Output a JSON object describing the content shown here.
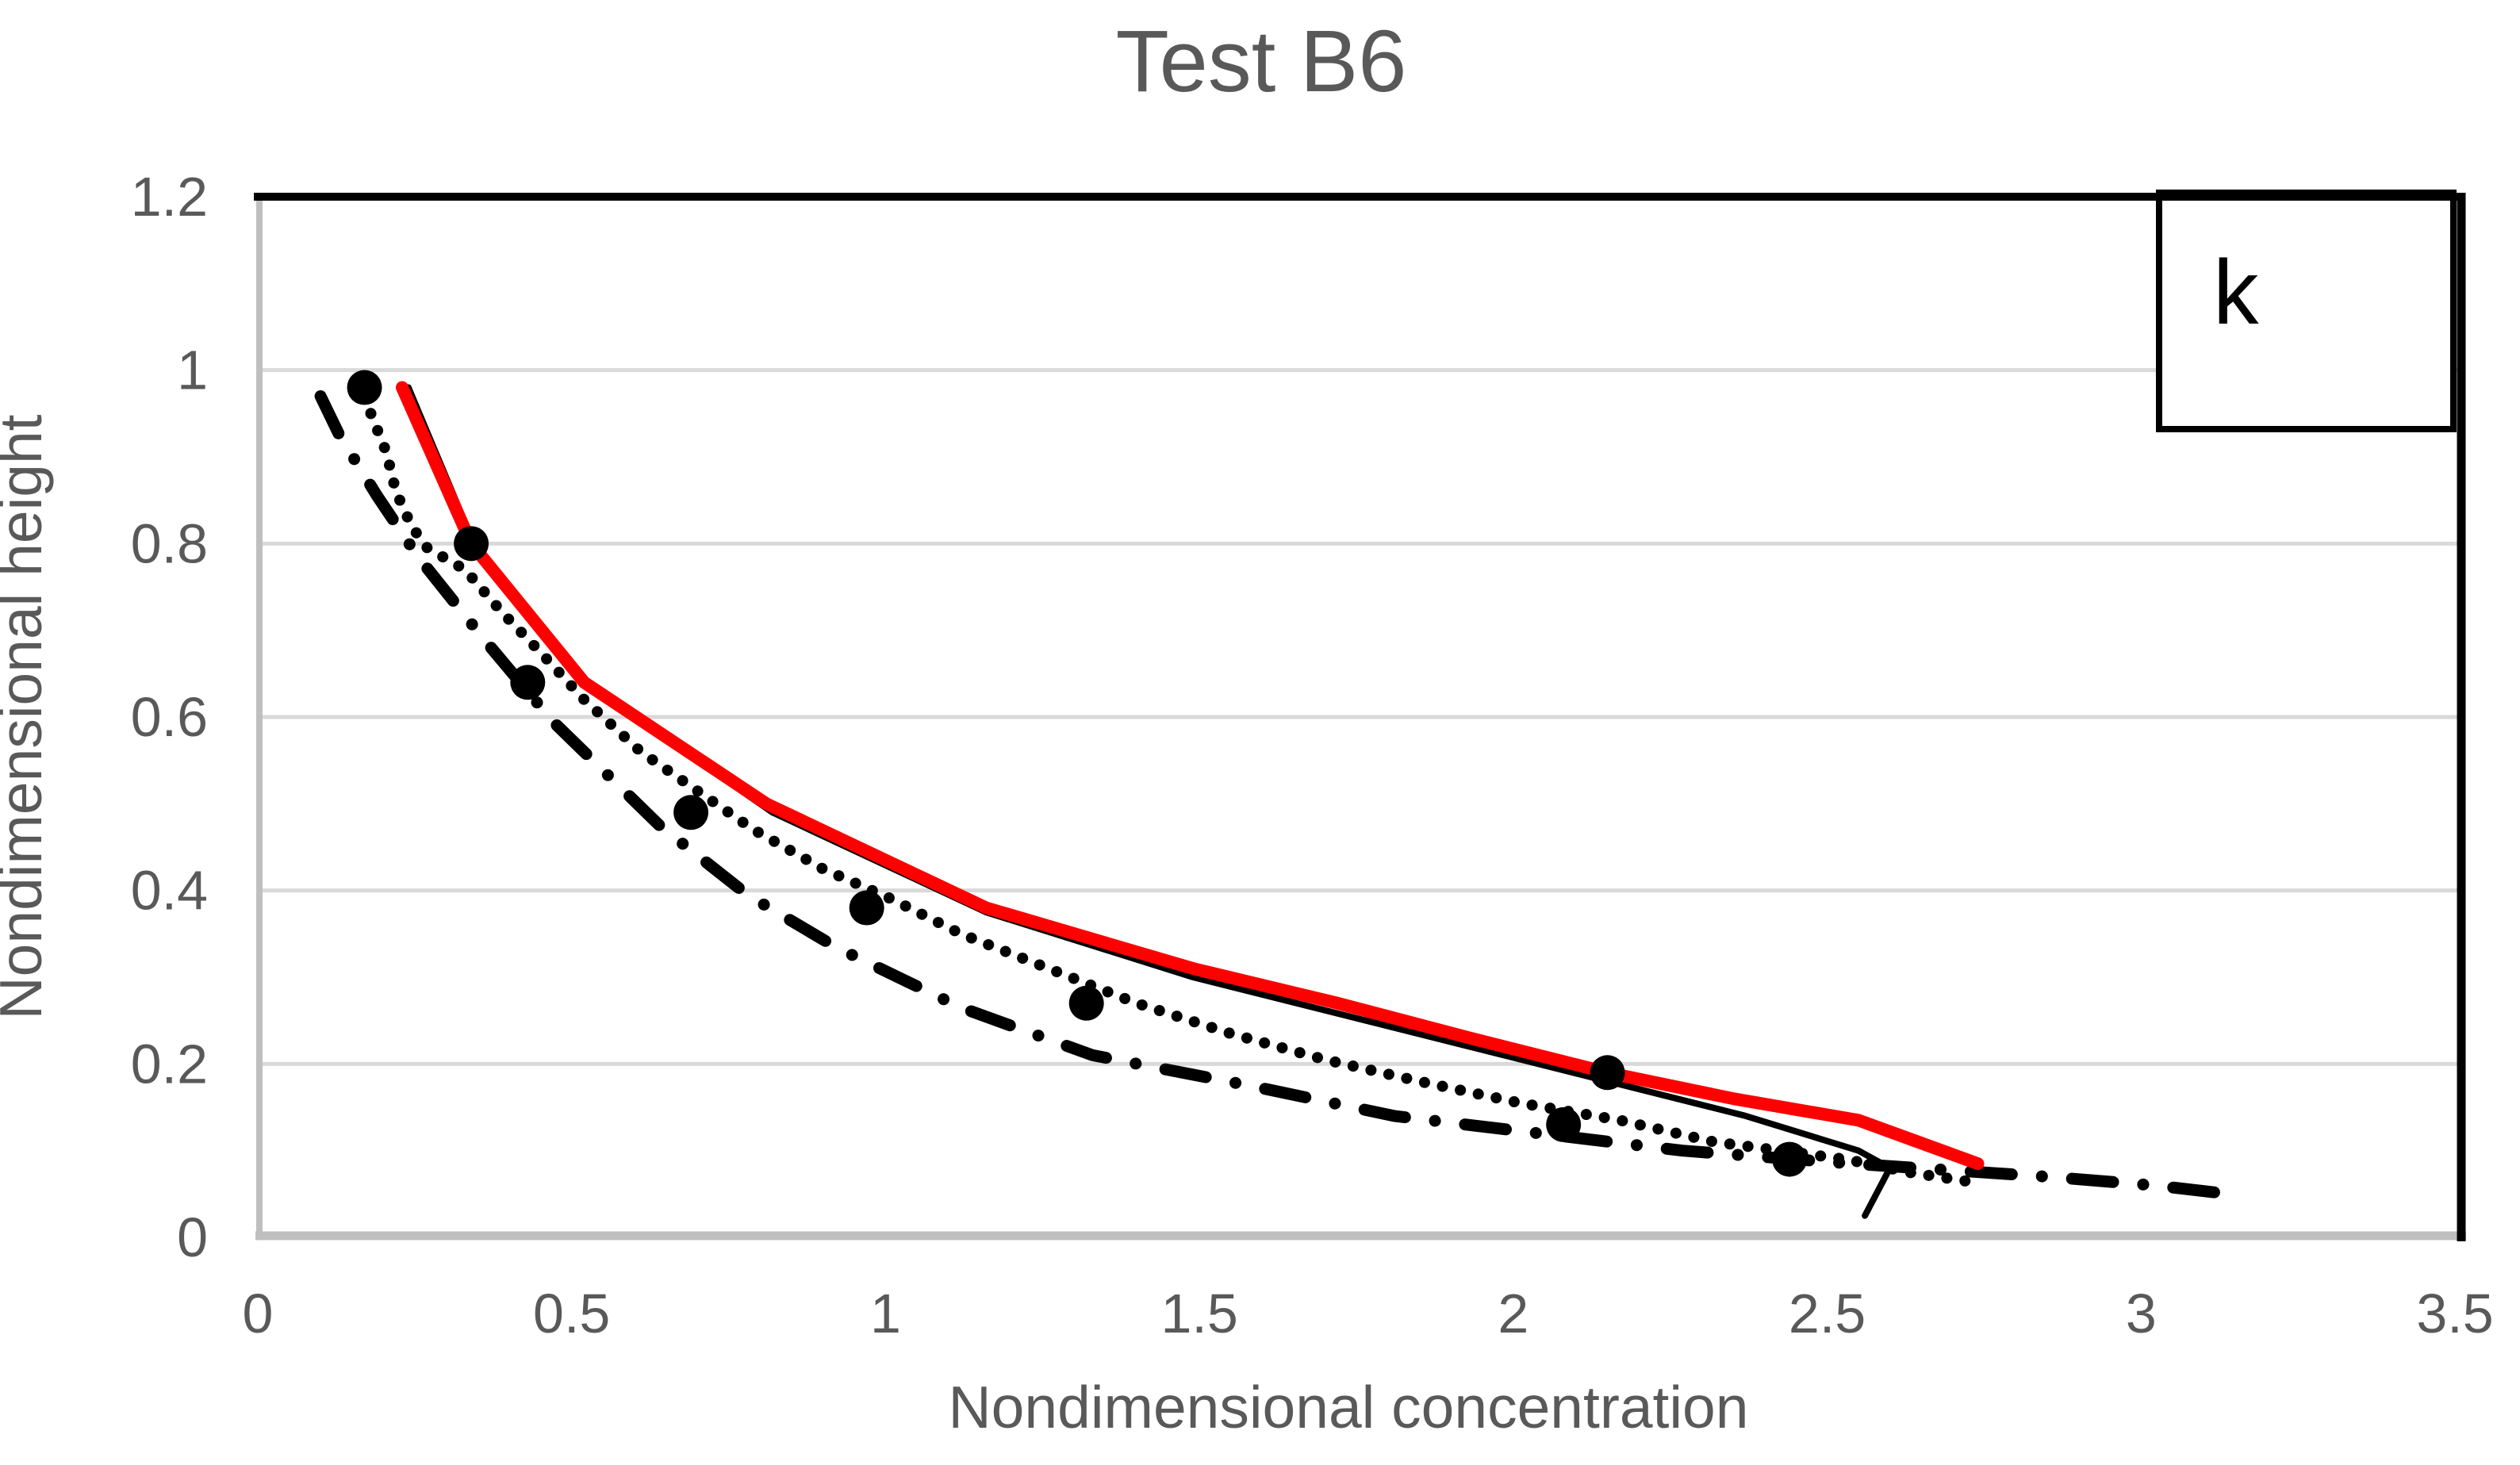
{
  "title": "Test B6",
  "colors": {
    "red_series": "#FF0000",
    "black_series": "#000000",
    "gridline": "#D9D9D9",
    "axis_line": "#BFBFBF",
    "border_line": "#000000",
    "text": "#595959",
    "background": "#FFFFFF"
  },
  "chart_data": {
    "type": "line",
    "title": "Test B6",
    "xlabel": "Nondimensional concentration",
    "ylabel": "Nondimensional height",
    "xlim": [
      0,
      3.5
    ],
    "ylim": [
      0,
      1.2
    ],
    "grid": "horizontal",
    "x_ticks": [
      0,
      0.5,
      1,
      1.5,
      2,
      2.5,
      3,
      3.5
    ],
    "x_tick_labels": [
      "0",
      "0.5",
      "1",
      "1.5",
      "2",
      "2.5",
      "3",
      "3.5"
    ],
    "y_ticks": [
      0,
      0.2,
      0.4,
      0.6,
      0.8,
      1,
      1.2
    ],
    "y_tick_labels": [
      "0",
      "0.2",
      "0.4",
      "0.6",
      "0.8",
      "1",
      "1.2"
    ],
    "y_gridline_values": [
      0.2,
      0.4,
      0.6,
      0.8,
      1.0
    ],
    "legend": {
      "position": "top-right",
      "label": "k"
    },
    "series": [
      {
        "name": "dash-dot-model",
        "type": "line",
        "style": "dash-dot",
        "color": "#000000",
        "width": 15,
        "points": [
          [
            0.1,
            0.97
          ],
          [
            0.13,
            0.925
          ],
          [
            0.19,
            0.855
          ],
          [
            0.255,
            0.785
          ],
          [
            0.36,
            0.69
          ],
          [
            0.47,
            0.595
          ],
          [
            0.555,
            0.535
          ],
          [
            0.64,
            0.475
          ],
          [
            0.78,
            0.395
          ],
          [
            0.92,
            0.335
          ],
          [
            1.12,
            0.265
          ],
          [
            1.33,
            0.21
          ],
          [
            1.58,
            0.175
          ],
          [
            1.81,
            0.14
          ],
          [
            2.04,
            0.12
          ],
          [
            2.27,
            0.1
          ],
          [
            2.54,
            0.085
          ],
          [
            2.85,
            0.07
          ],
          [
            3.02,
            0.06
          ],
          [
            3.14,
            0.05
          ]
        ]
      },
      {
        "name": "dotted-model",
        "type": "line",
        "style": "dotted",
        "color": "#000000",
        "width": 14,
        "points": [
          [
            0.18,
            0.95
          ],
          [
            0.205,
            0.905
          ],
          [
            0.22,
            0.86
          ],
          [
            0.245,
            0.82
          ],
          [
            0.27,
            0.795
          ],
          [
            0.33,
            0.77
          ],
          [
            0.39,
            0.72
          ],
          [
            0.45,
            0.675
          ],
          [
            0.52,
            0.62
          ],
          [
            0.61,
            0.56
          ],
          [
            0.69,
            0.52
          ],
          [
            0.79,
            0.47
          ],
          [
            0.9,
            0.425
          ],
          [
            1.01,
            0.39
          ],
          [
            1.12,
            0.35
          ],
          [
            1.26,
            0.31
          ],
          [
            1.4,
            0.27
          ],
          [
            1.55,
            0.235
          ],
          [
            1.7,
            0.205
          ],
          [
            1.85,
            0.18
          ],
          [
            2.01,
            0.155
          ],
          [
            2.17,
            0.135
          ],
          [
            2.32,
            0.11
          ],
          [
            2.53,
            0.09
          ],
          [
            2.63,
            0.075
          ],
          [
            2.72,
            0.065
          ]
        ]
      },
      {
        "name": "black-solid-model",
        "type": "line",
        "style": "solid",
        "color": "#000000",
        "width": 8,
        "points": [
          [
            0.24,
            0.98
          ],
          [
            0.35,
            0.79
          ],
          [
            0.53,
            0.635
          ],
          [
            0.82,
            0.49
          ],
          [
            1.16,
            0.375
          ],
          [
            1.49,
            0.3
          ],
          [
            1.93,
            0.22
          ],
          [
            2.15,
            0.18
          ],
          [
            2.37,
            0.14
          ],
          [
            2.55,
            0.1
          ],
          [
            2.6,
            0.08
          ],
          [
            2.56,
            0.025
          ]
        ]
      },
      {
        "name": "red-solid-model",
        "type": "line",
        "style": "solid",
        "color": "#FF0000",
        "width": 16,
        "points": [
          [
            0.23,
            0.98
          ],
          [
            0.34,
            0.8
          ],
          [
            0.52,
            0.64
          ],
          [
            0.81,
            0.5
          ],
          [
            1.16,
            0.38
          ],
          [
            1.49,
            0.31
          ],
          [
            1.72,
            0.27
          ],
          [
            1.93,
            0.23
          ],
          [
            2.15,
            0.19
          ],
          [
            2.35,
            0.16
          ],
          [
            2.55,
            0.135
          ],
          [
            2.74,
            0.085
          ]
        ]
      },
      {
        "name": "measured-points",
        "type": "scatter",
        "marker": "circle",
        "marker_radius": 22,
        "color": "#000000",
        "points": [
          [
            0.17,
            0.98
          ],
          [
            0.34,
            0.8
          ],
          [
            0.43,
            0.64
          ],
          [
            0.69,
            0.49
          ],
          [
            0.97,
            0.38
          ],
          [
            1.32,
            0.27
          ],
          [
            2.15,
            0.19
          ],
          [
            2.08,
            0.13
          ],
          [
            2.44,
            0.09
          ]
        ]
      }
    ]
  }
}
